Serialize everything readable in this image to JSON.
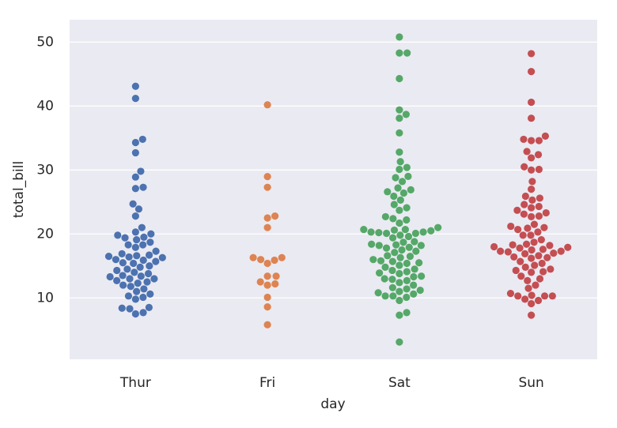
{
  "chart_data": {
    "type": "swarm",
    "xlabel": "day",
    "ylabel": "total_bill",
    "categories": [
      "Thur",
      "Fri",
      "Sat",
      "Sun"
    ],
    "colors": [
      "#4c72b0",
      "#dd8452",
      "#55a868",
      "#c44e52"
    ],
    "values": [
      [
        43.1,
        41.2,
        34.8,
        34.3,
        32.7,
        29.8,
        28.9,
        27.3,
        27.1,
        24.7,
        23.9,
        22.8,
        21.0,
        20.3,
        20.0,
        19.8,
        19.5,
        19.4,
        19.1,
        18.7,
        18.3,
        18.3,
        17.9,
        17.3,
        16.9,
        16.7,
        16.6,
        16.5,
        16.4,
        16.3,
        16.0,
        15.9,
        15.7,
        15.5,
        15.4,
        15.0,
        14.8,
        14.5,
        14.3,
        14.0,
        13.8,
        13.5,
        13.4,
        13.3,
        13.0,
        13.0,
        12.7,
        12.5,
        12.3,
        12.0,
        11.8,
        11.4,
        11.0,
        10.6,
        10.3,
        10.1,
        9.8,
        8.5,
        8.4,
        8.3,
        7.7,
        7.5
      ],
      [
        40.2,
        28.97,
        27.3,
        22.8,
        22.5,
        21.0,
        16.3,
        16.3,
        16.0,
        15.9,
        15.4,
        13.4,
        13.4,
        12.5,
        12.0,
        12.2,
        10.1,
        8.6,
        5.8
      ],
      [
        50.8,
        48.3,
        48.3,
        44.3,
        39.4,
        38.7,
        38.1,
        35.8,
        32.8,
        31.3,
        30.4,
        30.1,
        29.0,
        28.8,
        28.2,
        27.2,
        26.9,
        26.6,
        26.4,
        25.9,
        25.3,
        24.6,
        24.1,
        23.7,
        22.7,
        22.4,
        22.2,
        21.7,
        21.0,
        20.7,
        20.7,
        20.6,
        20.5,
        20.3,
        20.3,
        20.2,
        20.1,
        20.1,
        19.8,
        19.6,
        19.4,
        18.8,
        18.7,
        18.4,
        18.3,
        18.2,
        18.2,
        17.9,
        17.8,
        17.5,
        17.3,
        17.1,
        16.6,
        16.5,
        16.3,
        16.0,
        15.8,
        15.7,
        15.5,
        15.4,
        15.1,
        14.8,
        14.5,
        14.3,
        14.1,
        13.9,
        13.8,
        13.4,
        13.3,
        13.0,
        12.9,
        12.7,
        12.4,
        12.0,
        11.6,
        11.4,
        11.2,
        11.0,
        10.8,
        10.6,
        10.3,
        10.3,
        9.6,
        7.7,
        7.3,
        3.1,
        10.1
      ],
      [
        48.2,
        45.4,
        40.6,
        38.1,
        35.3,
        34.8,
        34.6,
        34.6,
        32.9,
        32.4,
        31.9,
        30.5,
        30.1,
        30.0,
        28.2,
        27.0,
        25.9,
        25.6,
        25.3,
        24.6,
        24.3,
        24.1,
        23.7,
        23.3,
        23.1,
        22.8,
        22.7,
        21.5,
        21.2,
        21.0,
        20.9,
        20.7,
        20.3,
        19.8,
        19.8,
        19.1,
        18.7,
        18.4,
        18.3,
        18.2,
        18.0,
        17.9,
        17.8,
        17.6,
        17.5,
        17.3,
        17.3,
        17.2,
        17.0,
        16.9,
        16.6,
        16.4,
        16.3,
        16.2,
        15.7,
        15.4,
        15.1,
        14.8,
        14.5,
        14.3,
        14.1,
        14.0,
        13.4,
        13.0,
        12.7,
        12.0,
        11.5,
        10.7,
        10.4,
        10.3,
        10.3,
        10.3,
        9.8,
        9.6,
        9.1,
        7.3
      ]
    ],
    "ylim": [
      0.4,
      53.5
    ],
    "yticks": [
      10,
      20,
      30,
      40,
      50
    ],
    "grid": true
  }
}
